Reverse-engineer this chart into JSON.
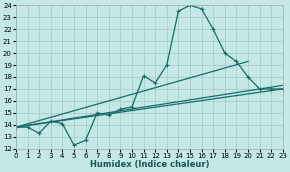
{
  "xlabel": "Humidex (Indice chaleur)",
  "bg_color": "#c4e8e6",
  "line_color": "#1a6b6b",
  "grid_color": "#a8cccc",
  "xlim": [
    0,
    23
  ],
  "ylim": [
    12,
    24
  ],
  "xticks": [
    0,
    1,
    2,
    3,
    4,
    5,
    6,
    7,
    8,
    9,
    10,
    11,
    12,
    13,
    14,
    15,
    16,
    17,
    18,
    19,
    20,
    21,
    22,
    23
  ],
  "yticks": [
    12,
    13,
    14,
    15,
    16,
    17,
    18,
    19,
    20,
    21,
    22,
    23,
    24
  ],
  "curve_x": [
    0,
    1,
    2,
    3,
    4,
    5,
    6,
    7,
    8,
    9,
    10,
    11,
    12,
    13,
    14,
    15,
    16,
    17,
    18,
    19,
    20,
    21,
    22,
    23
  ],
  "curve_y": [
    13.8,
    13.8,
    13.3,
    14.3,
    14.1,
    12.3,
    12.7,
    15.0,
    14.8,
    15.3,
    15.5,
    18.1,
    17.5,
    19.0,
    23.5,
    24.0,
    23.7,
    22.0,
    20.0,
    19.3,
    18.0,
    17.0,
    17.0,
    17.0
  ],
  "straight_lines": [
    {
      "x0": 0,
      "y0": 13.8,
      "x1": 23,
      "y1": 17.0
    },
    {
      "x0": 0,
      "y0": 13.8,
      "x1": 23,
      "y1": 17.3
    },
    {
      "x0": 0,
      "y0": 13.8,
      "x1": 20,
      "y1": 19.3
    }
  ],
  "linewidth": 0.9,
  "marker": "+",
  "markersize": 3.5,
  "markeredgewidth": 0.8,
  "tick_labelsize": 5.0,
  "xlabel_fontsize": 6.0
}
